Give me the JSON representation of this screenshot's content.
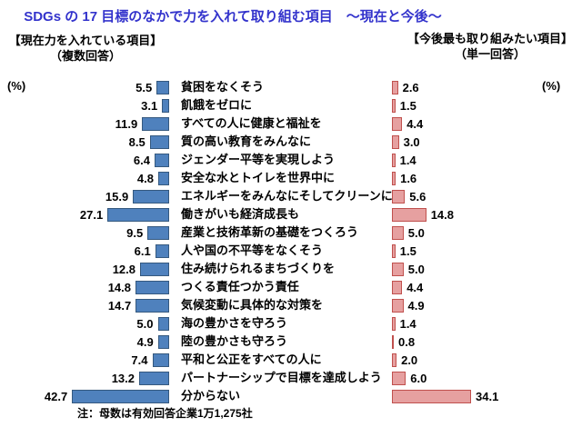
{
  "title": "SDGs の 17 目標のなかで力を入れて取り組む項目　～現在と今後～",
  "left_header": {
    "title": "【現在力を入れている項目】",
    "subtitle": "（複数回答）",
    "unit": "(%)"
  },
  "right_header": {
    "title": "【今後最も取り組みたい項目】",
    "subtitle": "（単一回答）",
    "unit": "(%)"
  },
  "note": "注：母数は有効回答企業1万1,275社",
  "colors": {
    "title_color": "#3333CC",
    "left_bar_fill": "#4F81BD",
    "left_bar_border": "#35597F",
    "right_bar_fill": "#E6A0A0",
    "right_bar_border": "#C0504D"
  },
  "chart_data": {
    "type": "bar",
    "layout": "paired-horizontal",
    "unit": "%",
    "value_label_decimals": 1,
    "grid": false,
    "axes_visible": false,
    "categories": [
      "貧困をなくそう",
      "飢餓をゼロに",
      "すべての人に健康と福祉を",
      "質の高い教育をみんなに",
      "ジェンダー平等を実現しよう",
      "安全な水とトイレを世界中に",
      "エネルギーをみんなにそしてクリーンに",
      "働きがいも経済成長も",
      "産業と技術革新の基礎をつくろう",
      "人や国の不平等をなくそう",
      "住み続けられるまちづくりを",
      "つくる責任つかう責任",
      "気候変動に具体的な対策を",
      "海の豊かさを守ろう",
      "陸の豊かさも守ろう",
      "平和と公正をすべての人に",
      "パートナーシップで目標を達成しよう",
      "分からない"
    ],
    "series": [
      {
        "name": "現在力を入れている項目（複数回答）",
        "side": "left",
        "values": [
          5.5,
          3.1,
          11.9,
          8.5,
          6.4,
          4.8,
          15.9,
          27.1,
          9.5,
          6.1,
          12.8,
          14.8,
          14.7,
          5.0,
          4.9,
          7.4,
          13.2,
          42.7
        ]
      },
      {
        "name": "今後最も取り組みたい項目（単一回答）",
        "side": "right",
        "values": [
          2.6,
          1.5,
          4.4,
          3.0,
          1.4,
          1.6,
          5.6,
          14.8,
          5.0,
          1.5,
          5.0,
          4.4,
          4.9,
          1.4,
          0.8,
          2.0,
          6.0,
          34.1
        ]
      }
    ]
  }
}
